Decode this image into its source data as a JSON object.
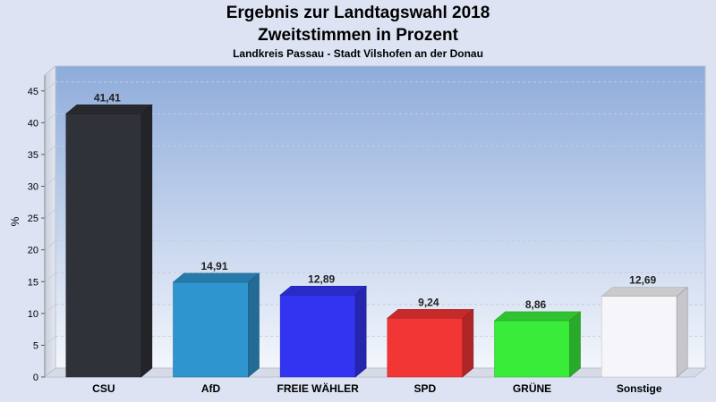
{
  "chart_data": {
    "type": "bar",
    "title": "Ergebnis zur Landtagswahl 2018",
    "subtitle": "Zweitstimmen in Prozent",
    "caption": "Landkreis Passau - Stadt Vilshofen an der Donau",
    "xlabel": "",
    "ylabel": "%",
    "ylim": [
      0,
      47.5
    ],
    "yticks": [
      0,
      5,
      10,
      15,
      20,
      25,
      30,
      35,
      40,
      45
    ],
    "grid": true,
    "categories": [
      "CSU",
      "AfD",
      "FREIE WÄHLER",
      "SPD",
      "GRÜNE",
      "Sonstige"
    ],
    "values": [
      41.41,
      14.91,
      12.89,
      9.24,
      8.86,
      12.69
    ],
    "value_labels": [
      "41,41",
      "14,91",
      "12,89",
      "9,24",
      "8,86",
      "12,69"
    ],
    "colors": [
      "#2f3238",
      "#2f95cf",
      "#3333f2",
      "#f23535",
      "#3aec3a",
      "#f6f6fa"
    ]
  }
}
